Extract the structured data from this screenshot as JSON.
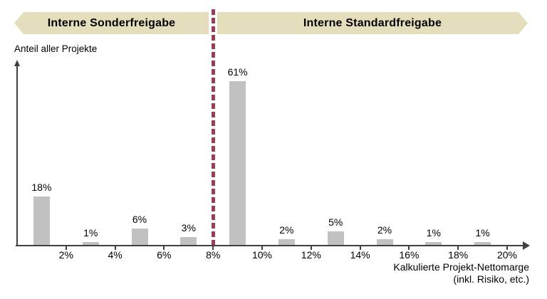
{
  "banners": {
    "left": "Interne Sonderfreigabe",
    "right": "Interne Standardfreigabe"
  },
  "axis": {
    "y_label": "Anteil aller Projekte",
    "x_caption_line1": "Kalkulierte Projekt-Nettomarge",
    "x_caption_line2": "(inkl. Risiko, etc.)"
  },
  "chart_data": {
    "type": "bar",
    "title": "",
    "xlabel": "Kalkulierte Projekt-Nettomarge (inkl. Risiko, etc.)",
    "ylabel": "Anteil aller Projekte",
    "x": [
      1,
      3,
      5,
      7,
      9,
      11,
      13,
      15,
      17,
      19
    ],
    "values": [
      18,
      1,
      6,
      3,
      61,
      2,
      5,
      2,
      1,
      1
    ],
    "bar_labels": [
      "18%",
      "1%",
      "6%",
      "3%",
      "61%",
      "2%",
      "5%",
      "2%",
      "1%",
      "1%"
    ],
    "x_ticks": [
      2,
      4,
      6,
      8,
      10,
      12,
      14,
      16,
      18,
      20
    ],
    "x_tick_labels": [
      "2%",
      "4%",
      "6%",
      "8%",
      "10%",
      "12%",
      "14%",
      "16%",
      "18%",
      "20%"
    ],
    "divider_x": 8,
    "xlim": [
      0,
      20.8
    ],
    "ylim": [
      0,
      66
    ],
    "grid": false,
    "legend_position": "none",
    "annotations": {
      "left_region": "Interne Sonderfreigabe",
      "right_region": "Interne Standardfreigabe"
    }
  },
  "colors": {
    "bar": "#c1c1c1",
    "banner_bg": "#e4debc",
    "divider": "#9a3e55",
    "axis": "#3f3f3f",
    "text": "#000000"
  }
}
